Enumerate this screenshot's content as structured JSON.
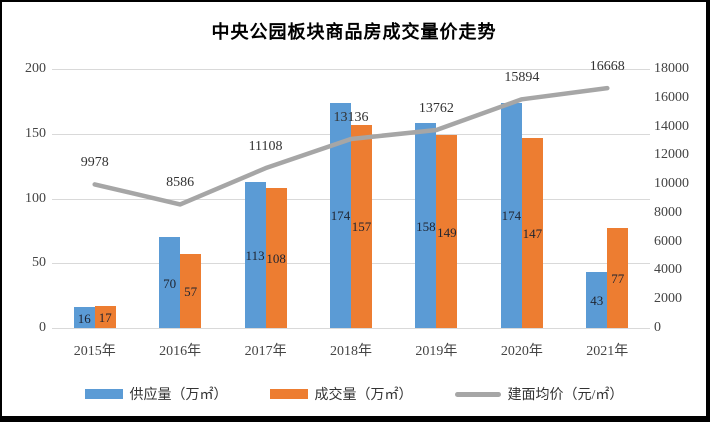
{
  "chart_data": {
    "type": "bar+line combo",
    "title": "中央公园板块商品房成交量价走势",
    "categories": [
      "2015年",
      "2016年",
      "2017年",
      "2018年",
      "2019年",
      "2020年",
      "2021年"
    ],
    "series": [
      {
        "key": "supply",
        "name": "供应量（万㎡）",
        "type": "bar",
        "axis": "left",
        "color": "#5B9BD5",
        "values": [
          16,
          70,
          113,
          174,
          158,
          174,
          43
        ]
      },
      {
        "key": "deal",
        "name": "成交量（万㎡）",
        "type": "bar",
        "axis": "left",
        "color": "#ED7D31",
        "values": [
          17,
          57,
          108,
          157,
          149,
          147,
          77
        ]
      },
      {
        "key": "price",
        "name": "建面均价（元/㎡）",
        "type": "line",
        "axis": "right",
        "color": "#A6A6A6",
        "values": [
          9978,
          8586,
          11108,
          13136,
          13762,
          15894,
          16668
        ]
      }
    ],
    "left_axis": {
      "min": 0,
      "max": 200,
      "ticks": [
        0,
        50,
        100,
        150,
        200
      ]
    },
    "right_axis": {
      "min": 0,
      "max": 18000,
      "ticks": [
        0,
        2000,
        4000,
        6000,
        8000,
        10000,
        12000,
        14000,
        16000,
        18000
      ]
    },
    "grid": "horizontal gridlines at left-axis ticks",
    "gridline_color": "#D9D9D9",
    "axis_text_color": "#444444",
    "data_labels": "shown for all series",
    "legend_position": "bottom"
  }
}
